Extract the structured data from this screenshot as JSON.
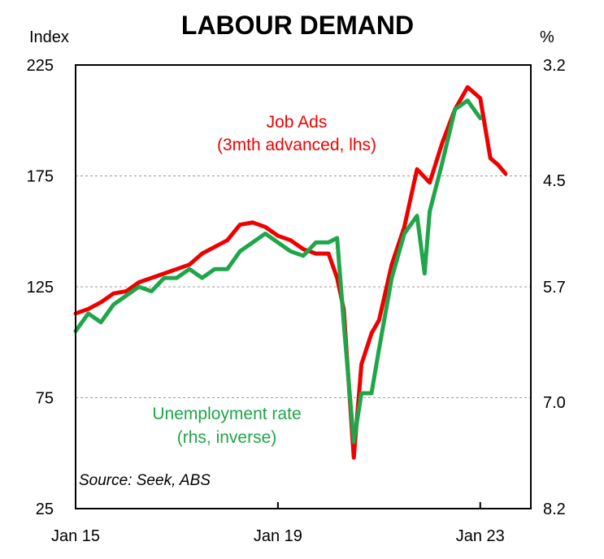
{
  "chart_data": {
    "type": "line",
    "title": "LABOUR DEMAND",
    "left_axis_unit": "Index",
    "right_axis_unit": "%",
    "left_ylim": [
      25,
      225
    ],
    "right_ylim": [
      8.2,
      3.2
    ],
    "left_ticks": [
      "225",
      "175",
      "125",
      "75",
      "25"
    ],
    "right_ticks": [
      "3.2",
      "4.5",
      "5.7",
      "7.0",
      "8.2"
    ],
    "x_tick_labels": [
      "Jan 15",
      "Jan 19",
      "Jan 23"
    ],
    "x_range": [
      2015.0,
      2024.0
    ],
    "x_tick_values": [
      2015.0,
      2019.0,
      2023.0
    ],
    "gridlines": "horizontal dashed at 175, 125, 75",
    "series": [
      {
        "name": "Job Ads",
        "label_lines": [
          "Job Ads",
          "(3mth advanced, lhs)"
        ],
        "axis": "left",
        "color": "#ee0000",
        "x": [
          2015.0,
          2015.25,
          2015.5,
          2015.75,
          2016.0,
          2016.25,
          2016.5,
          2016.75,
          2017.0,
          2017.25,
          2017.5,
          2017.75,
          2018.0,
          2018.25,
          2018.5,
          2018.75,
          2019.0,
          2019.25,
          2019.5,
          2019.75,
          2020.0,
          2020.17,
          2020.3,
          2020.5,
          2020.65,
          2020.85,
          2021.0,
          2021.25,
          2021.5,
          2021.75,
          2022.0,
          2022.25,
          2022.5,
          2022.75,
          2023.0,
          2023.2,
          2023.35,
          2023.5
        ],
        "values": [
          113,
          115,
          118,
          122,
          123,
          127,
          129,
          131,
          133,
          135,
          140,
          143,
          146,
          153,
          154,
          152,
          148,
          146,
          142,
          140,
          140,
          129,
          115,
          48,
          90,
          104,
          110,
          135,
          152,
          178,
          172,
          190,
          205,
          215,
          210,
          183,
          180,
          176
        ]
      },
      {
        "name": "Unemployment rate",
        "label_lines": [
          "Unemployment rate",
          "(rhs, inverse)"
        ],
        "axis": "right",
        "color": "#1fa54a",
        "x": [
          2015.0,
          2015.25,
          2015.5,
          2015.75,
          2016.0,
          2016.25,
          2016.5,
          2016.75,
          2017.0,
          2017.25,
          2017.5,
          2017.75,
          2018.0,
          2018.25,
          2018.5,
          2018.75,
          2019.0,
          2019.25,
          2019.5,
          2019.75,
          2020.0,
          2020.17,
          2020.3,
          2020.5,
          2020.65,
          2020.85,
          2021.0,
          2021.25,
          2021.5,
          2021.75,
          2021.9,
          2022.0,
          2022.25,
          2022.5,
          2022.75,
          2023.0
        ],
        "values": [
          6.2,
          6.0,
          6.1,
          5.9,
          5.8,
          5.7,
          5.75,
          5.6,
          5.6,
          5.5,
          5.6,
          5.5,
          5.5,
          5.3,
          5.2,
          5.1,
          5.2,
          5.3,
          5.35,
          5.2,
          5.2,
          5.15,
          6.1,
          7.45,
          6.9,
          6.9,
          6.4,
          5.6,
          5.1,
          4.9,
          5.55,
          4.85,
          4.3,
          3.7,
          3.6,
          3.8
        ]
      }
    ],
    "source": "Source: Seek, ABS"
  }
}
